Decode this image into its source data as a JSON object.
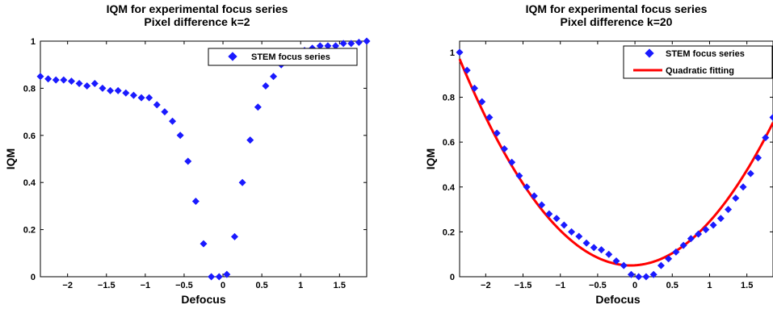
{
  "chart_data": [
    {
      "type": "scatter",
      "title": "IQM for experimental focus series",
      "subtitle": "Pixel difference k=2",
      "xlabel": "Defocus",
      "ylabel": "IQM",
      "xlim": [
        -2.35,
        1.85
      ],
      "ylim": [
        0,
        1
      ],
      "xticks": [
        "−2",
        "−1.5",
        "−1",
        "−0.5",
        "0",
        "0.5",
        "1",
        "1.5"
      ],
      "xtick_values": [
        -2,
        -1.5,
        -1,
        -0.5,
        0,
        0.5,
        1,
        1.5
      ],
      "yticks": [
        "0",
        "0.2",
        "0.4",
        "0.6",
        "0.8",
        "1"
      ],
      "ytick_values": [
        0,
        0.2,
        0.4,
        0.6,
        0.8,
        1
      ],
      "grid": false,
      "legend_position": "top-right",
      "series": [
        {
          "name": "STEM focus series",
          "kind": "markers",
          "color": "#1a1aff",
          "x": [
            -2.35,
            -2.25,
            -2.15,
            -2.05,
            -1.95,
            -1.85,
            -1.75,
            -1.65,
            -1.55,
            -1.45,
            -1.35,
            -1.25,
            -1.15,
            -1.05,
            -0.95,
            -0.85,
            -0.75,
            -0.65,
            -0.55,
            -0.45,
            -0.35,
            -0.25,
            -0.15,
            -0.05,
            0.05,
            0.15,
            0.25,
            0.35,
            0.45,
            0.55,
            0.65,
            0.75,
            0.85,
            0.95,
            1.05,
            1.15,
            1.25,
            1.35,
            1.45,
            1.55,
            1.65,
            1.75,
            1.85
          ],
          "y": [
            0.85,
            0.84,
            0.835,
            0.835,
            0.83,
            0.82,
            0.81,
            0.82,
            0.8,
            0.79,
            0.79,
            0.78,
            0.77,
            0.76,
            0.76,
            0.73,
            0.7,
            0.66,
            0.6,
            0.49,
            0.32,
            0.14,
            0.0,
            0.0,
            0.01,
            0.17,
            0.4,
            0.58,
            0.72,
            0.81,
            0.85,
            0.9,
            0.93,
            0.95,
            0.96,
            0.97,
            0.98,
            0.98,
            0.98,
            0.99,
            0.99,
            0.995,
            1.0
          ]
        }
      ]
    },
    {
      "type": "scatter",
      "title": "IQM for experimental focus series",
      "subtitle": "Pixel difference k=20",
      "xlabel": "Defocus",
      "ylabel": "IQM",
      "xlim": [
        -2.35,
        1.85
      ],
      "ylim": [
        0,
        1.05
      ],
      "xticks": [
        "−2",
        "−1.5",
        "−1",
        "−0.5",
        "0",
        "0.5",
        "1",
        "1.5"
      ],
      "xtick_values": [
        -2,
        -1.5,
        -1,
        -0.5,
        0,
        0.5,
        1,
        1.5
      ],
      "yticks": [
        "0",
        "0.2",
        "0.4",
        "0.6",
        "0.8",
        "1"
      ],
      "ytick_values": [
        0,
        0.2,
        0.4,
        0.6,
        0.8,
        1
      ],
      "grid": false,
      "legend_position": "top-right",
      "series": [
        {
          "name": "STEM focus series",
          "kind": "markers",
          "color": "#1a1aff",
          "x": [
            -2.35,
            -2.25,
            -2.15,
            -2.05,
            -1.95,
            -1.85,
            -1.75,
            -1.65,
            -1.55,
            -1.45,
            -1.35,
            -1.25,
            -1.15,
            -1.05,
            -0.95,
            -0.85,
            -0.75,
            -0.65,
            -0.55,
            -0.45,
            -0.35,
            -0.25,
            -0.15,
            -0.05,
            0.05,
            0.15,
            0.25,
            0.35,
            0.45,
            0.55,
            0.65,
            0.75,
            0.85,
            0.95,
            1.05,
            1.15,
            1.25,
            1.35,
            1.45,
            1.55,
            1.65,
            1.75,
            1.85
          ],
          "y": [
            1.0,
            0.92,
            0.84,
            0.78,
            0.71,
            0.64,
            0.57,
            0.51,
            0.45,
            0.4,
            0.36,
            0.32,
            0.28,
            0.26,
            0.23,
            0.2,
            0.18,
            0.15,
            0.13,
            0.12,
            0.1,
            0.07,
            0.05,
            0.01,
            0.0,
            0.0,
            0.01,
            0.05,
            0.08,
            0.11,
            0.14,
            0.17,
            0.19,
            0.21,
            0.23,
            0.26,
            0.3,
            0.35,
            0.4,
            0.46,
            0.53,
            0.62,
            0.71
          ]
        },
        {
          "name": "Quadratic fitting",
          "kind": "line",
          "color": "#ff0000",
          "quadratic": {
            "a": 0.175,
            "b": 0.02,
            "c": 0.051
          }
        }
      ]
    }
  ]
}
